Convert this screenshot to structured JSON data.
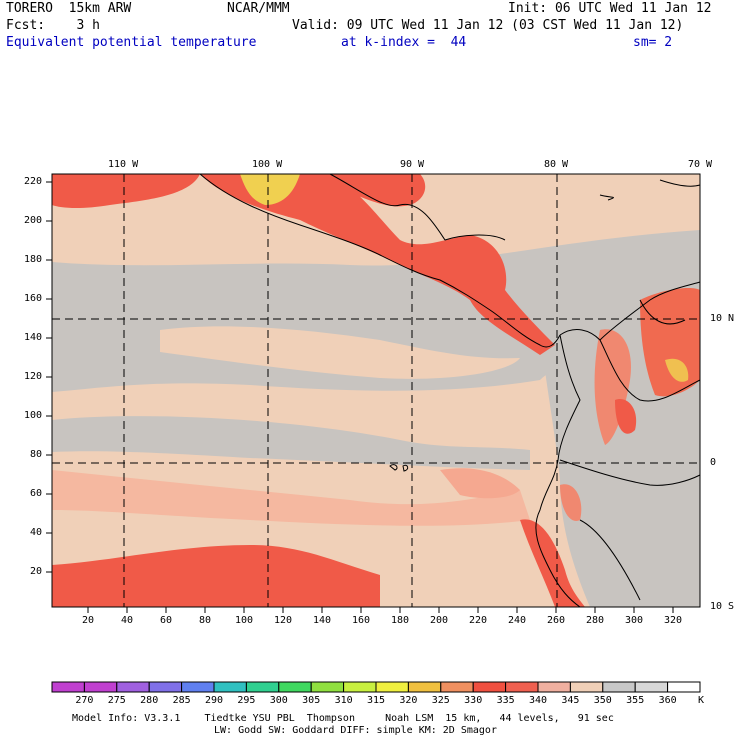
{
  "header": {
    "model": "TORERO  15km ARW",
    "center": "NCAR/MMM",
    "init": "Init: 06 UTC Wed 11 Jan 12",
    "fcst": "Fcst:    3 h",
    "valid": "Valid: 09 UTC Wed 11 Jan 12 (03 CST Wed 11 Jan 12)",
    "field": "Equivalent potential temperature",
    "level": "at k-index =  44",
    "smoothing": "sm= 2"
  },
  "map": {
    "lon_labels": [
      "110 W",
      "100 W",
      "90 W",
      "80 W",
      "70 W"
    ],
    "lat_labels": [
      "10 N",
      "0",
      "10 S"
    ],
    "y_ticks": [
      "220",
      "200",
      "180",
      "160",
      "140",
      "120",
      "100",
      "80",
      "60",
      "40",
      "20"
    ],
    "x_ticks": [
      "20",
      "40",
      "60",
      "80",
      "100",
      "120",
      "140",
      "160",
      "180",
      "200",
      "220",
      "240",
      "260",
      "280",
      "300",
      "320"
    ]
  },
  "colorbar": {
    "unit": "K",
    "labels": [
      "270",
      "275",
      "280",
      "285",
      "290",
      "295",
      "300",
      "305",
      "310",
      "315",
      "320",
      "325",
      "330",
      "335",
      "340",
      "345",
      "350",
      "355",
      "360"
    ],
    "colors": [
      "#c040d0",
      "#a060e0",
      "#8070e8",
      "#6080f0",
      "#30c0c0",
      "#30d090",
      "#40d860",
      "#90e040",
      "#c8f040",
      "#f0f040",
      "#f0c040",
      "#f09060",
      "#f05040",
      "#f06050",
      "#f0b0a0",
      "#f0d0b8",
      "#c8c8c8",
      "#d8d8d8",
      "#ffffff"
    ]
  },
  "footer": {
    "line1": "Model Info: V3.3.1    Tiedtke YSU PBL  Thompson     Noah LSM  15 km,   44 levels,   91 sec",
    "line2": "LW: Godd SW: Goddard DIFF: simple KM: 2D Smagor"
  }
}
